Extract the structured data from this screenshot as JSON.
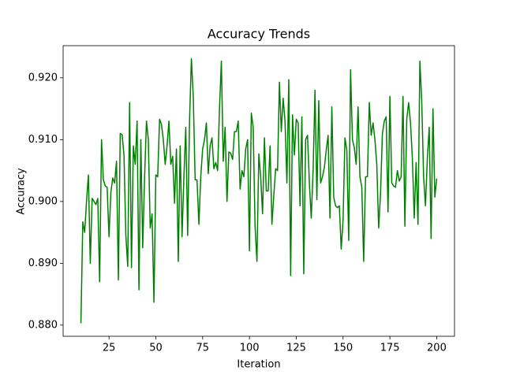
{
  "chart_data": {
    "type": "line",
    "title": "Accuracy Trends",
    "x_label": "Iteration",
    "y_label": "Accuracy",
    "x": [
      10,
      11,
      12,
      13,
      14,
      15,
      16,
      17,
      18,
      19,
      20,
      21,
      22,
      23,
      24,
      25,
      26,
      27,
      28,
      29,
      30,
      31,
      32,
      33,
      34,
      35,
      36,
      37,
      38,
      39,
      40,
      41,
      42,
      43,
      44,
      45,
      46,
      47,
      48,
      49,
      50,
      51,
      52,
      53,
      54,
      55,
      56,
      57,
      58,
      59,
      60,
      61,
      62,
      63,
      64,
      65,
      66,
      67,
      68,
      69,
      70,
      71,
      72,
      73,
      74,
      75,
      76,
      77,
      78,
      79,
      80,
      81,
      82,
      83,
      84,
      85,
      86,
      87,
      88,
      89,
      90,
      91,
      92,
      93,
      94,
      95,
      96,
      97,
      98,
      99,
      100,
      101,
      102,
      103,
      104,
      105,
      106,
      107,
      108,
      109,
      110,
      111,
      112,
      113,
      114,
      115,
      116,
      117,
      118,
      119,
      120,
      121,
      122,
      123,
      124,
      125,
      126,
      127,
      128,
      129,
      130,
      131,
      132,
      133,
      134,
      135,
      136,
      137,
      138,
      139,
      140,
      141,
      142,
      143,
      144,
      145,
      146,
      147,
      148,
      149,
      150,
      151,
      152,
      153,
      154,
      155,
      156,
      157,
      158,
      159,
      160,
      161,
      162,
      163,
      164,
      165,
      166,
      167,
      168,
      169,
      170,
      171,
      172,
      173,
      174,
      175,
      176,
      177,
      178,
      179,
      180,
      181,
      182,
      183,
      184,
      185,
      186,
      187,
      188,
      189,
      190,
      191,
      192,
      193,
      194,
      195,
      196,
      197,
      198,
      199,
      200
    ],
    "series": [
      {
        "color": "#008000",
        "values": [
          0.8803,
          0.8967,
          0.895,
          0.9,
          0.9043,
          0.89,
          0.9005,
          0.9,
          0.8995,
          0.9005,
          0.887,
          0.91,
          0.9035,
          0.9025,
          0.9023,
          0.8943,
          0.9015,
          0.9038,
          0.903,
          0.9065,
          0.8873,
          0.911,
          0.9108,
          0.9075,
          0.8945,
          0.8895,
          0.916,
          0.8893,
          0.909,
          0.906,
          0.913,
          0.8857,
          0.91,
          0.8925,
          0.9038,
          0.913,
          0.91,
          0.8957,
          0.898,
          0.8837,
          0.9043,
          0.904,
          0.9133,
          0.9125,
          0.91,
          0.906,
          0.909,
          0.913,
          0.906,
          0.9073,
          0.8997,
          0.9085,
          0.8903,
          0.909,
          0.8943,
          0.904,
          0.912,
          0.8945,
          0.913,
          0.9231,
          0.917,
          0.9035,
          0.9035,
          0.8963,
          0.904,
          0.9085,
          0.91,
          0.9127,
          0.9045,
          0.909,
          0.9103,
          0.9053,
          0.9063,
          0.905,
          0.915,
          0.9227,
          0.9065,
          0.912,
          0.9,
          0.908,
          0.9078,
          0.9068,
          0.9113,
          0.9113,
          0.913,
          0.902,
          0.905,
          0.904,
          0.9085,
          0.91,
          0.892,
          0.9143,
          0.912,
          0.896,
          0.8903,
          0.9077,
          0.904,
          0.898,
          0.9103,
          0.9017,
          0.9017,
          0.909,
          0.8963,
          0.901,
          0.9053,
          0.905,
          0.9193,
          0.9113,
          0.9167,
          0.913,
          0.903,
          0.9197,
          0.888,
          0.914,
          0.9075,
          0.9133,
          0.9127,
          0.8993,
          0.9137,
          0.8883,
          0.91,
          0.9107,
          0.903,
          0.8973,
          0.905,
          0.918,
          0.9003,
          0.9163,
          0.903,
          0.904,
          0.9055,
          0.9083,
          0.9107,
          0.8973,
          0.9153,
          0.9007,
          0.8993,
          0.899,
          0.8993,
          0.8923,
          0.897,
          0.9103,
          0.9083,
          0.8937,
          0.9213,
          0.91,
          0.9087,
          0.906,
          0.9153,
          0.904,
          0.9023,
          0.8903,
          0.904,
          0.904,
          0.916,
          0.9107,
          0.9127,
          0.91,
          0.906,
          0.8957,
          0.9013,
          0.911,
          0.913,
          0.9137,
          0.8983,
          0.917,
          0.903,
          0.9025,
          0.9023,
          0.905,
          0.9033,
          0.904,
          0.917,
          0.896,
          0.9133,
          0.916,
          0.9127,
          0.907,
          0.8973,
          0.9063,
          0.8963,
          0.9227,
          0.9163,
          0.904,
          0.8993,
          0.907,
          0.912,
          0.894,
          0.915,
          0.9007,
          0.9037
        ]
      }
    ],
    "xlim": [
      0.5,
      209.5
    ],
    "xticks": [
      25,
      50,
      75,
      100,
      125,
      150,
      175,
      200
    ],
    "ylim": [
      0.8782,
      0.9252
    ],
    "yticks": [
      {
        "value": 0.88,
        "label": "0.880"
      },
      {
        "value": 0.89,
        "label": "0.890"
      },
      {
        "value": 0.9,
        "label": "0.900"
      },
      {
        "value": 0.91,
        "label": "0.910"
      },
      {
        "value": 0.92,
        "label": "0.920"
      }
    ],
    "grid": false
  }
}
